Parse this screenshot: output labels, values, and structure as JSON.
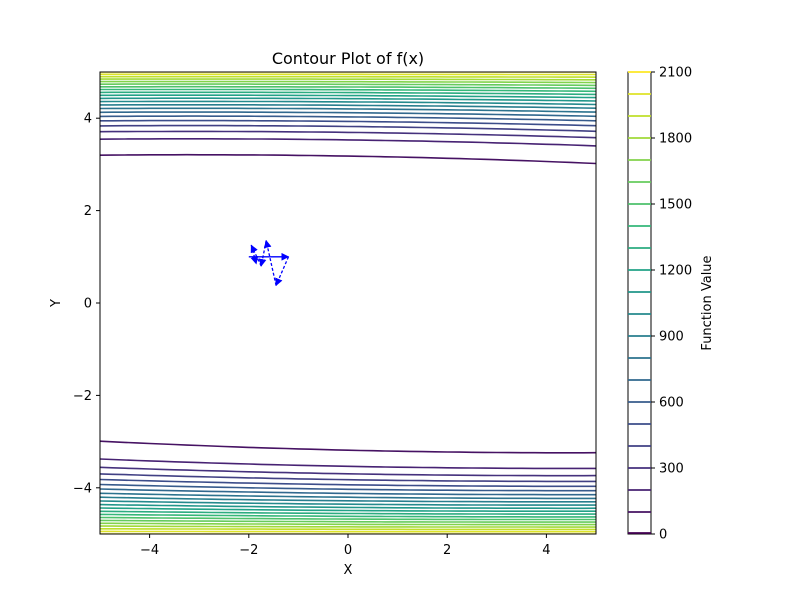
{
  "chart_data": {
    "type": "contour",
    "title": "Contour Plot of f(x)",
    "xlabel": "X",
    "ylabel": "Y",
    "xlim": [
      -5,
      5
    ],
    "ylim": [
      -5,
      5
    ],
    "xticks": [
      -4,
      -2,
      0,
      2,
      4
    ],
    "yticks": [
      -4,
      -2,
      0,
      2,
      4
    ],
    "xtick_labels": [
      "−4",
      "−2",
      "0",
      "2",
      "4"
    ],
    "ytick_labels": [
      "−4",
      "−2",
      "0",
      "2",
      "4"
    ],
    "colormap": "viridis",
    "colorbar": {
      "label": "Function Value",
      "range": [
        0,
        2100
      ],
      "levels": [
        0,
        100,
        200,
        300,
        400,
        500,
        600,
        700,
        800,
        900,
        1000,
        1100,
        1200,
        1300,
        1400,
        1500,
        1600,
        1700,
        1800,
        1900,
        2000,
        2100
      ],
      "tick_values": [
        0,
        300,
        600,
        900,
        1200,
        1500,
        1800,
        2100
      ],
      "tick_labels": [
        "0",
        "300",
        "600",
        "900",
        "1200",
        "1500",
        "1800",
        "2100"
      ]
    },
    "contour_bands": {
      "top": {
        "y_outer_at_x_minus5": 3.2,
        "y_outer_at_x_plus5": 3.02,
        "y_peak_x": 0
      },
      "bottom": {
        "y_outer_at_x_minus5": -3.05,
        "y_outer_at_x_plus5": -3.2,
        "y_peak_x": 1.8
      }
    },
    "path": {
      "color": "#0000ff",
      "line_style": "dashed",
      "arrows": true,
      "points": [
        {
          "x": -2.0,
          "y": 1.0
        },
        {
          "x": -1.2,
          "y": 1.0
        },
        {
          "x": -1.45,
          "y": 0.38
        },
        {
          "x": -1.65,
          "y": 1.35
        },
        {
          "x": -1.75,
          "y": 0.8
        },
        {
          "x": -1.95,
          "y": 1.25
        },
        {
          "x": -1.85,
          "y": 0.85
        }
      ]
    }
  }
}
